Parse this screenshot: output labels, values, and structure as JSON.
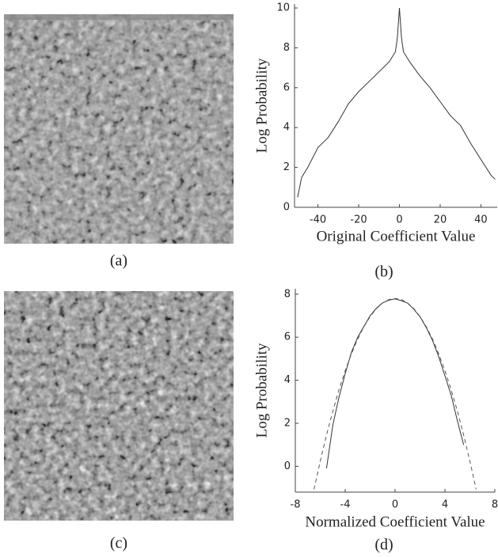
{
  "images": [
    {
      "caption": "(a)"
    },
    {
      "caption": "(c)"
    }
  ],
  "chart_data": [
    {
      "type": "line",
      "caption": "(b)",
      "y_label": "Log Probability",
      "x_label": "Original Coefficient Value",
      "x": [
        -50,
        -48,
        -45,
        -40,
        -35,
        -30,
        -25,
        -20,
        -15,
        -10,
        -5,
        -2,
        -1,
        0,
        1,
        2,
        5,
        10,
        15,
        20,
        25,
        30,
        35,
        40,
        45,
        47
      ],
      "series": [
        {
          "color": "#333333",
          "style": "solid",
          "values": [
            0.5,
            1.5,
            2,
            3,
            3.5,
            4.3,
            5.2,
            5.8,
            6.3,
            6.8,
            7.3,
            7.8,
            8.5,
            10,
            8.5,
            7.8,
            7.3,
            6.6,
            6,
            5.3,
            4.6,
            4.1,
            3.2,
            2.4,
            1.6,
            1.4
          ]
        }
      ],
      "xlim": [
        -51.5,
        48
      ],
      "ylim": [
        0,
        10.2
      ],
      "xticks": [
        -40,
        -20,
        0,
        20,
        40
      ],
      "yticks": [
        0,
        2,
        4,
        6,
        8,
        10
      ]
    },
    {
      "type": "line",
      "caption": "(d)",
      "y_label": "Log Probability",
      "x_label": "Normalized Coefficient Value",
      "x": [
        -6.5,
        -6,
        -5.5,
        -5,
        -4.5,
        -4,
        -3.5,
        -3,
        -2.5,
        -2,
        -1.5,
        -1,
        -0.5,
        0,
        0.5,
        1,
        1.5,
        2,
        2.5,
        3,
        3.5,
        4,
        4.5,
        5,
        5.5,
        6,
        6.5
      ],
      "series": [
        {
          "color": "#333333",
          "style": "solid",
          "values": [
            null,
            null,
            -0.1,
            1.9,
            3.2,
            4.3,
            5.3,
            6,
            6.5,
            7,
            7.35,
            7.6,
            7.72,
            7.78,
            7.7,
            7.58,
            7.3,
            6.95,
            6.45,
            5.85,
            5.1,
            4.2,
            3.3,
            2.1,
            1,
            null,
            null
          ]
        },
        {
          "color": "#555555",
          "style": "dashed",
          "values": [
            -1.07,
            0.24,
            1.45,
            2.55,
            3.55,
            4.44,
            5.23,
            5.91,
            6.49,
            6.96,
            7.33,
            7.59,
            7.75,
            7.8,
            7.75,
            7.59,
            7.33,
            6.96,
            6.49,
            5.91,
            5.23,
            4.44,
            3.55,
            2.55,
            1.45,
            0.24,
            -1.07
          ]
        }
      ],
      "xlim": [
        -8,
        8
      ],
      "ylim": [
        -1.2,
        8.25
      ],
      "xticks": [
        -8,
        -4,
        0,
        4,
        8
      ],
      "yticks": [
        0,
        2,
        4,
        6,
        8
      ]
    }
  ]
}
